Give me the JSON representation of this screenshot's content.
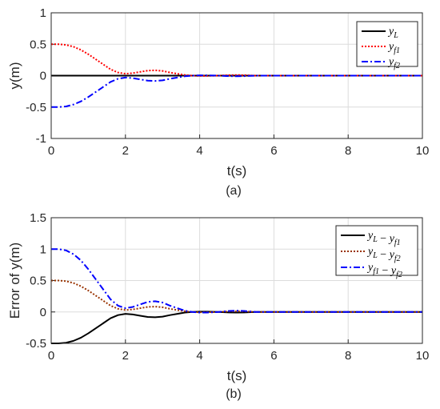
{
  "chart_data": [
    {
      "type": "line",
      "panel_caption": "(a)",
      "xlabel": "t(s)",
      "ylabel": "y(m)",
      "xlim": [
        0,
        10
      ],
      "ylim": [
        -1,
        1
      ],
      "xticks": [
        "0",
        "2",
        "4",
        "6",
        "8",
        "10"
      ],
      "yticks": [
        "1",
        "0.5",
        "0",
        "-0.5",
        "-1"
      ],
      "grid": true,
      "legend_position": "top-right",
      "series": [
        {
          "name": "y_L",
          "color": "#000000",
          "style": "solid",
          "x": [
            0,
            10
          ],
          "y": [
            0,
            0
          ]
        },
        {
          "name": "y_f1",
          "color": "#ff0000",
          "style": "dotted",
          "x": [
            0,
            0.2,
            0.4,
            0.6,
            0.8,
            1.0,
            1.2,
            1.4,
            1.6,
            1.8,
            2.0,
            2.2,
            2.4,
            2.6,
            2.8,
            3.0,
            3.2,
            3.4,
            3.6,
            3.8,
            4.0,
            4.2,
            4.5,
            4.8,
            5.0,
            5.2,
            5.5,
            6.0,
            7.0,
            8.0,
            10.0
          ],
          "y": [
            0.5,
            0.5,
            0.49,
            0.46,
            0.41,
            0.34,
            0.26,
            0.18,
            0.1,
            0.05,
            0.03,
            0.04,
            0.06,
            0.08,
            0.085,
            0.075,
            0.05,
            0.03,
            0.01,
            0.0,
            -0.005,
            -0.005,
            0.0,
            0.008,
            0.01,
            0.008,
            0.0,
            0.0,
            0.0,
            0.0,
            0.0
          ]
        },
        {
          "name": "y_f2",
          "color": "#0000ff",
          "style": "dashdot",
          "x": [
            0,
            0.2,
            0.4,
            0.6,
            0.8,
            1.0,
            1.2,
            1.4,
            1.6,
            1.8,
            2.0,
            2.2,
            2.4,
            2.6,
            2.8,
            3.0,
            3.2,
            3.4,
            3.6,
            3.8,
            4.0,
            4.2,
            4.5,
            4.8,
            5.0,
            5.2,
            5.5,
            6.0,
            7.0,
            8.0,
            10.0
          ],
          "y": [
            -0.5,
            -0.5,
            -0.49,
            -0.46,
            -0.41,
            -0.34,
            -0.26,
            -0.18,
            -0.1,
            -0.05,
            -0.03,
            -0.04,
            -0.06,
            -0.08,
            -0.085,
            -0.075,
            -0.05,
            -0.03,
            -0.01,
            0.0,
            0.005,
            0.005,
            0.0,
            -0.008,
            -0.01,
            -0.008,
            0.0,
            0.0,
            0.0,
            0.0,
            0.0
          ]
        }
      ]
    },
    {
      "type": "line",
      "panel_caption": "(b)",
      "xlabel": "t(s)",
      "ylabel": "Error of y(m)",
      "xlim": [
        0,
        10
      ],
      "ylim": [
        -0.5,
        1.5
      ],
      "xticks": [
        "0",
        "2",
        "4",
        "6",
        "8",
        "10"
      ],
      "yticks": [
        "1.5",
        "1",
        "0.5",
        "0",
        "-0.5"
      ],
      "grid": true,
      "legend_position": "top-right",
      "series": [
        {
          "name": "y_L - y_f1",
          "color": "#000000",
          "style": "solid",
          "x": [
            0,
            0.2,
            0.4,
            0.6,
            0.8,
            1.0,
            1.2,
            1.4,
            1.6,
            1.8,
            2.0,
            2.2,
            2.4,
            2.6,
            2.8,
            3.0,
            3.2,
            3.4,
            3.6,
            3.8,
            4.0,
            4.2,
            4.5,
            4.8,
            5.0,
            5.2,
            5.5,
            6.0,
            7.0,
            8.0,
            10.0
          ],
          "y": [
            -0.5,
            -0.5,
            -0.49,
            -0.46,
            -0.41,
            -0.34,
            -0.26,
            -0.18,
            -0.1,
            -0.05,
            -0.03,
            -0.04,
            -0.06,
            -0.08,
            -0.085,
            -0.075,
            -0.05,
            -0.03,
            -0.01,
            0.0,
            0.005,
            0.005,
            0.0,
            -0.008,
            -0.01,
            -0.008,
            0.0,
            0.0,
            0.0,
            0.0,
            0.0
          ]
        },
        {
          "name": "y_L - y_f2",
          "color": "#993300",
          "style": "dotted",
          "x": [
            0,
            0.2,
            0.4,
            0.6,
            0.8,
            1.0,
            1.2,
            1.4,
            1.6,
            1.8,
            2.0,
            2.2,
            2.4,
            2.6,
            2.8,
            3.0,
            3.2,
            3.4,
            3.6,
            3.8,
            4.0,
            4.2,
            4.5,
            4.8,
            5.0,
            5.2,
            5.5,
            6.0,
            7.0,
            8.0,
            10.0
          ],
          "y": [
            0.5,
            0.5,
            0.49,
            0.46,
            0.41,
            0.34,
            0.26,
            0.18,
            0.1,
            0.05,
            0.03,
            0.04,
            0.06,
            0.08,
            0.085,
            0.075,
            0.05,
            0.03,
            0.01,
            0.0,
            -0.005,
            -0.005,
            0.0,
            0.008,
            0.01,
            0.008,
            0.0,
            0.0,
            0.0,
            0.0,
            0.0
          ]
        },
        {
          "name": "y_f1 - y_f2",
          "color": "#0000ff",
          "style": "dashdot",
          "x": [
            0,
            0.2,
            0.4,
            0.6,
            0.8,
            1.0,
            1.2,
            1.4,
            1.6,
            1.8,
            2.0,
            2.2,
            2.4,
            2.6,
            2.8,
            3.0,
            3.2,
            3.4,
            3.6,
            3.8,
            4.0,
            4.2,
            4.5,
            4.8,
            5.0,
            5.2,
            5.5,
            6.0,
            7.0,
            8.0,
            10.0
          ],
          "y": [
            1.0,
            1.0,
            0.98,
            0.92,
            0.82,
            0.68,
            0.52,
            0.36,
            0.2,
            0.1,
            0.06,
            0.08,
            0.12,
            0.16,
            0.17,
            0.15,
            0.1,
            0.06,
            0.02,
            0.0,
            -0.01,
            -0.01,
            0.0,
            0.016,
            0.02,
            0.016,
            0.0,
            0.0,
            0.0,
            0.0,
            0.0
          ]
        }
      ]
    }
  ]
}
